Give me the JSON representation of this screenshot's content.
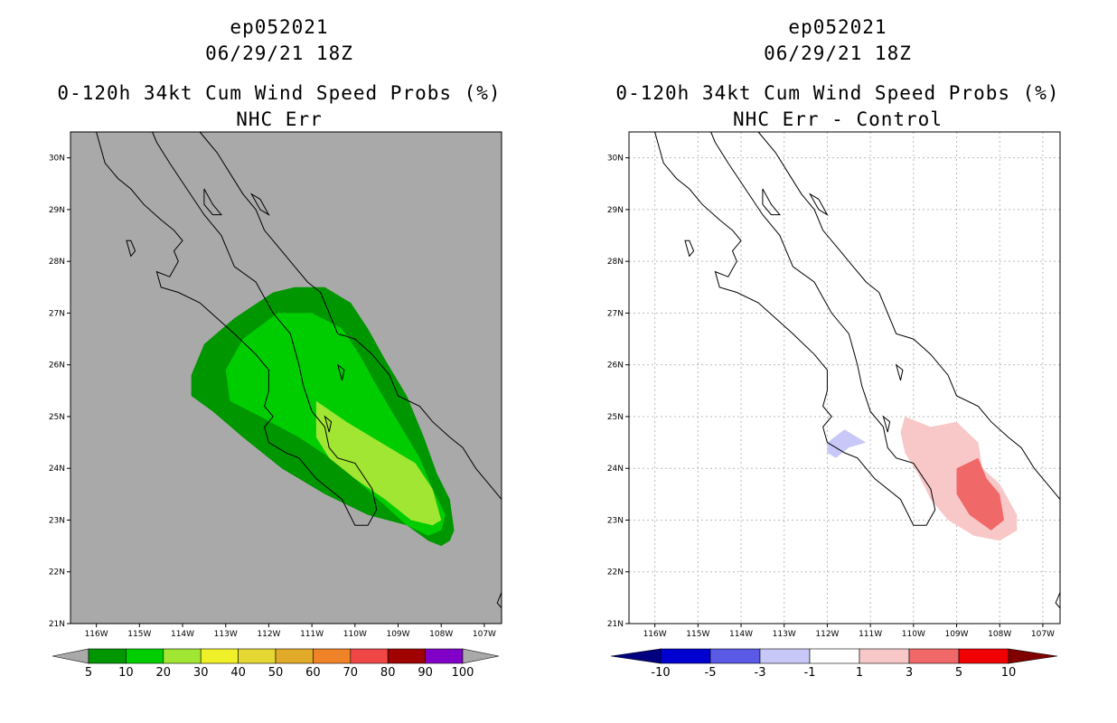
{
  "chart_data": [
    {
      "type": "heatmap",
      "storm_id": "ep052021",
      "date_label": "06/29/21 18Z",
      "title": "0-120h 34kt Cum Wind Speed Probs (%)",
      "subtitle": "NHC Err",
      "lon_range": [
        -116.6,
        -106.6
      ],
      "lat_range": [
        21,
        30.5
      ],
      "x_ticks": [
        "116W",
        "115W",
        "114W",
        "113W",
        "112W",
        "111W",
        "110W",
        "109W",
        "108W",
        "107W"
      ],
      "y_ticks": [
        "21N",
        "22N",
        "23N",
        "24N",
        "25N",
        "26N",
        "27N",
        "28N",
        "29N",
        "30N"
      ],
      "background": "#a9a9a9",
      "gridlines": false,
      "series": [
        {
          "name": "5-10%",
          "color": "#009600",
          "polygon": [
            [
              -113.8,
              25.8
            ],
            [
              -113.5,
              26.4
            ],
            [
              -112.8,
              26.9
            ],
            [
              -111.9,
              27.4
            ],
            [
              -111.4,
              27.5
            ],
            [
              -110.7,
              27.5
            ],
            [
              -110.1,
              27.2
            ],
            [
              -109.7,
              26.7
            ],
            [
              -109.3,
              26.1
            ],
            [
              -108.8,
              25.4
            ],
            [
              -108.4,
              24.6
            ],
            [
              -108.1,
              23.9
            ],
            [
              -107.8,
              23.4
            ],
            [
              -107.7,
              22.8
            ],
            [
              -107.8,
              22.6
            ],
            [
              -108.0,
              22.5
            ],
            [
              -108.3,
              22.6
            ],
            [
              -108.8,
              22.9
            ],
            [
              -109.7,
              23.1
            ],
            [
              -110.7,
              23.5
            ],
            [
              -111.7,
              24.0
            ],
            [
              -112.6,
              24.6
            ],
            [
              -113.3,
              25.1
            ],
            [
              -113.8,
              25.4
            ]
          ]
        },
        {
          "name": "10-20%",
          "color": "#00cd00",
          "polygon": [
            [
              -113.0,
              25.9
            ],
            [
              -112.6,
              26.5
            ],
            [
              -111.8,
              27.0
            ],
            [
              -111.0,
              27.0
            ],
            [
              -110.3,
              26.7
            ],
            [
              -109.9,
              26.2
            ],
            [
              -109.5,
              25.6
            ],
            [
              -109.0,
              24.9
            ],
            [
              -108.5,
              24.2
            ],
            [
              -108.2,
              23.6
            ],
            [
              -107.9,
              23.1
            ],
            [
              -108.0,
              22.8
            ],
            [
              -108.3,
              22.7
            ],
            [
              -108.8,
              22.9
            ],
            [
              -109.6,
              23.5
            ],
            [
              -110.4,
              24.1
            ],
            [
              -111.3,
              24.6
            ],
            [
              -112.2,
              25.0
            ],
            [
              -112.9,
              25.3
            ]
          ]
        },
        {
          "name": "20-30%",
          "color": "#a0e632",
          "polygon": [
            [
              -110.9,
              25.3
            ],
            [
              -110.2,
              24.9
            ],
            [
              -109.4,
              24.5
            ],
            [
              -108.6,
              24.1
            ],
            [
              -108.2,
              23.6
            ],
            [
              -108.0,
              23.0
            ],
            [
              -108.2,
              22.9
            ],
            [
              -108.7,
              23.0
            ],
            [
              -109.3,
              23.4
            ],
            [
              -110.0,
              23.8
            ],
            [
              -110.6,
              24.2
            ],
            [
              -110.9,
              24.6
            ]
          ]
        }
      ],
      "colorbar": {
        "labels": [
          "5",
          "10",
          "20",
          "30",
          "40",
          "50",
          "60",
          "70",
          "80",
          "90",
          "100"
        ],
        "colors": [
          "#009600",
          "#00cd00",
          "#a0e632",
          "#f0f028",
          "#e6d832",
          "#e1aa28",
          "#f08228",
          "#f04646",
          "#a00000",
          "#8000c8"
        ],
        "extend_color": "#a9a9a9"
      }
    },
    {
      "type": "heatmap",
      "storm_id": "ep052021",
      "date_label": "06/29/21 18Z",
      "title": "0-120h 34kt Cum Wind Speed Probs (%)",
      "subtitle": "NHC Err - Control",
      "lon_range": [
        -116.6,
        -106.6
      ],
      "lat_range": [
        21,
        30.5
      ],
      "x_ticks": [
        "116W",
        "115W",
        "114W",
        "113W",
        "112W",
        "111W",
        "110W",
        "109W",
        "108W",
        "107W"
      ],
      "y_ticks": [
        "21N",
        "22N",
        "23N",
        "24N",
        "25N",
        "26N",
        "27N",
        "28N",
        "29N",
        "30N"
      ],
      "background": "#ffffff",
      "gridlines": true,
      "series": [
        {
          "name": "-3 to -1",
          "color": "#c8c8f8",
          "polygon": [
            [
              -112.0,
              24.5
            ],
            [
              -111.6,
              24.75
            ],
            [
              -111.4,
              24.65
            ],
            [
              -111.1,
              24.5
            ],
            [
              -111.5,
              24.4
            ],
            [
              -111.8,
              24.2
            ],
            [
              -112.0,
              24.3
            ]
          ]
        },
        {
          "name": "1 to 3",
          "color": "#f8c8c8",
          "polygon": [
            [
              -110.2,
              25.0
            ],
            [
              -109.6,
              24.8
            ],
            [
              -109.0,
              24.9
            ],
            [
              -108.5,
              24.5
            ],
            [
              -108.4,
              24.0
            ],
            [
              -108.0,
              23.7
            ],
            [
              -107.6,
              23.1
            ],
            [
              -107.6,
              22.8
            ],
            [
              -108.0,
              22.6
            ],
            [
              -108.6,
              22.7
            ],
            [
              -109.2,
              23.0
            ],
            [
              -109.6,
              23.4
            ],
            [
              -109.9,
              23.9
            ],
            [
              -110.2,
              24.3
            ],
            [
              -110.3,
              24.7
            ]
          ]
        },
        {
          "name": "3 to 5",
          "color": "#f06868",
          "polygon": [
            [
              -109.0,
              24.0
            ],
            [
              -108.5,
              24.2
            ],
            [
              -108.3,
              23.8
            ],
            [
              -108.0,
              23.5
            ],
            [
              -107.9,
              23.0
            ],
            [
              -108.2,
              22.8
            ],
            [
              -108.7,
              23.1
            ],
            [
              -109.0,
              23.5
            ],
            [
              -109.0,
              23.8
            ]
          ]
        }
      ],
      "colorbar": {
        "labels": [
          "-10",
          "-5",
          "-3",
          "-1",
          "1",
          "3",
          "5",
          "10"
        ],
        "colors": [
          "#0000d0",
          "#5a5ae6",
          "#c8c8f8",
          "#ffffff",
          "#f8c8c8",
          "#f06868",
          "#f00000"
        ],
        "low_extend_color": "#000080",
        "high_extend_color": "#800000"
      }
    }
  ]
}
